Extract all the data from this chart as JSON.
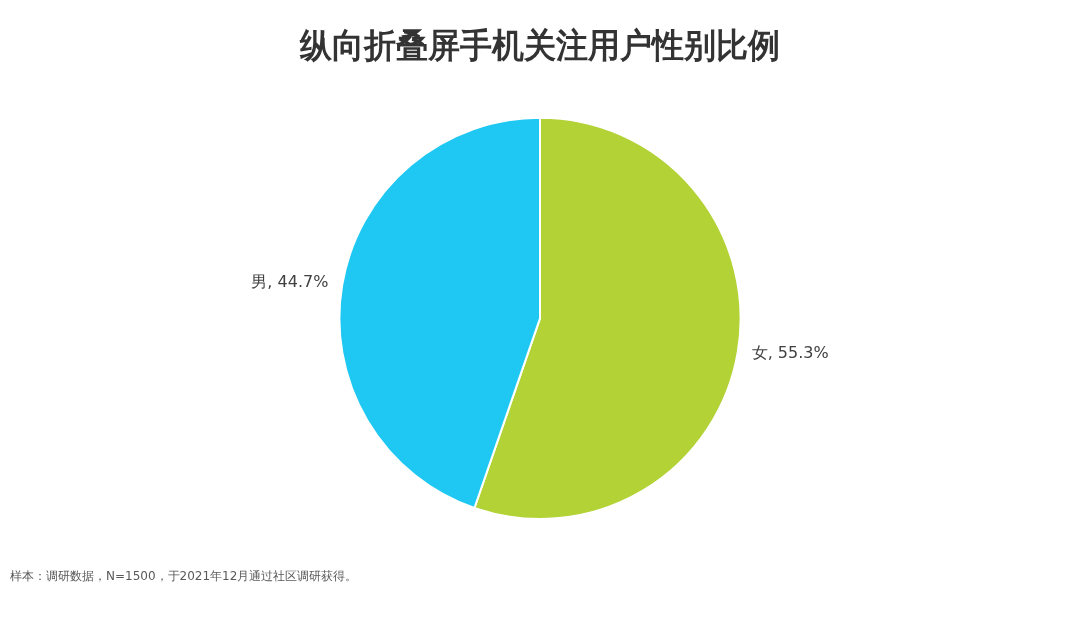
{
  "chart_data": {
    "type": "pie",
    "title": "纵向折叠屏手机关注用户性别比例",
    "categories": [
      "女",
      "男"
    ],
    "values": [
      55.3,
      44.7
    ],
    "colors": [
      "#b2d235",
      "#1fc8f2"
    ],
    "value_labels": [
      ", 55.3%",
      ", 44.7%"
    ],
    "legend": false,
    "annotations": [
      "样本：调研数据，N=1500，于2021年12月通过社区调研获得。"
    ]
  }
}
